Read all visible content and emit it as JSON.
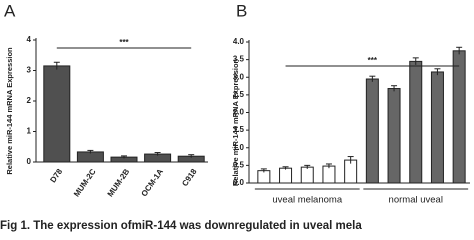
{
  "chart_data": [
    {
      "type": "bar",
      "label": "A",
      "ylabel": "Relative miR-144 mRNA Expression",
      "annotation": "***",
      "categories": [
        "D78",
        "MUM-2C",
        "MUM-2B",
        "OCM-1A",
        "C918"
      ],
      "values": [
        3.15,
        0.33,
        0.16,
        0.26,
        0.19
      ],
      "errors": [
        0.12,
        0.05,
        0.04,
        0.05,
        0.05
      ],
      "color": "#505050",
      "ylim": [
        0,
        4
      ],
      "yticks": [
        0,
        1,
        2,
        3,
        4
      ]
    },
    {
      "type": "bar",
      "label": "B",
      "ylabel": "Relative miR-144 mRNA Expression",
      "annotation": "***",
      "categories": [
        null,
        null,
        null,
        null,
        null,
        null,
        null,
        null,
        null,
        null
      ],
      "values": [
        0.35,
        0.42,
        0.45,
        0.48,
        0.65,
        2.95,
        2.68,
        3.45,
        3.15,
        3.75
      ],
      "errors": [
        0.05,
        0.04,
        0.05,
        0.06,
        0.1,
        0.08,
        0.08,
        0.1,
        0.09,
        0.1
      ],
      "colors": [
        "#ffffff",
        "#ffffff",
        "#ffffff",
        "#ffffff",
        "#ffffff",
        "#666666",
        "#666666",
        "#666666",
        "#666666",
        "#666666"
      ],
      "group_labels": [
        "uveal melanoma",
        "normal uveal"
      ],
      "ylim": [
        0,
        4
      ],
      "yticks": [
        {
          "value": 0,
          "label": "0.0"
        },
        {
          "value": 0.5,
          "label": "0.5"
        },
        {
          "value": 1,
          "label": "1.0"
        },
        {
          "value": 1.5,
          "label": "1.5"
        },
        {
          "value": 2,
          "label": "2.0"
        },
        {
          "value": 2.5,
          "label": "2.5"
        },
        {
          "value": 3,
          "label": "3.0"
        },
        {
          "value": 3.5,
          "label": "3.5"
        },
        {
          "value": 4,
          "label": "4.0"
        }
      ]
    }
  ],
  "caption": "Fig 1. The expression ofmiR-144 was downregulated in uveal mela"
}
